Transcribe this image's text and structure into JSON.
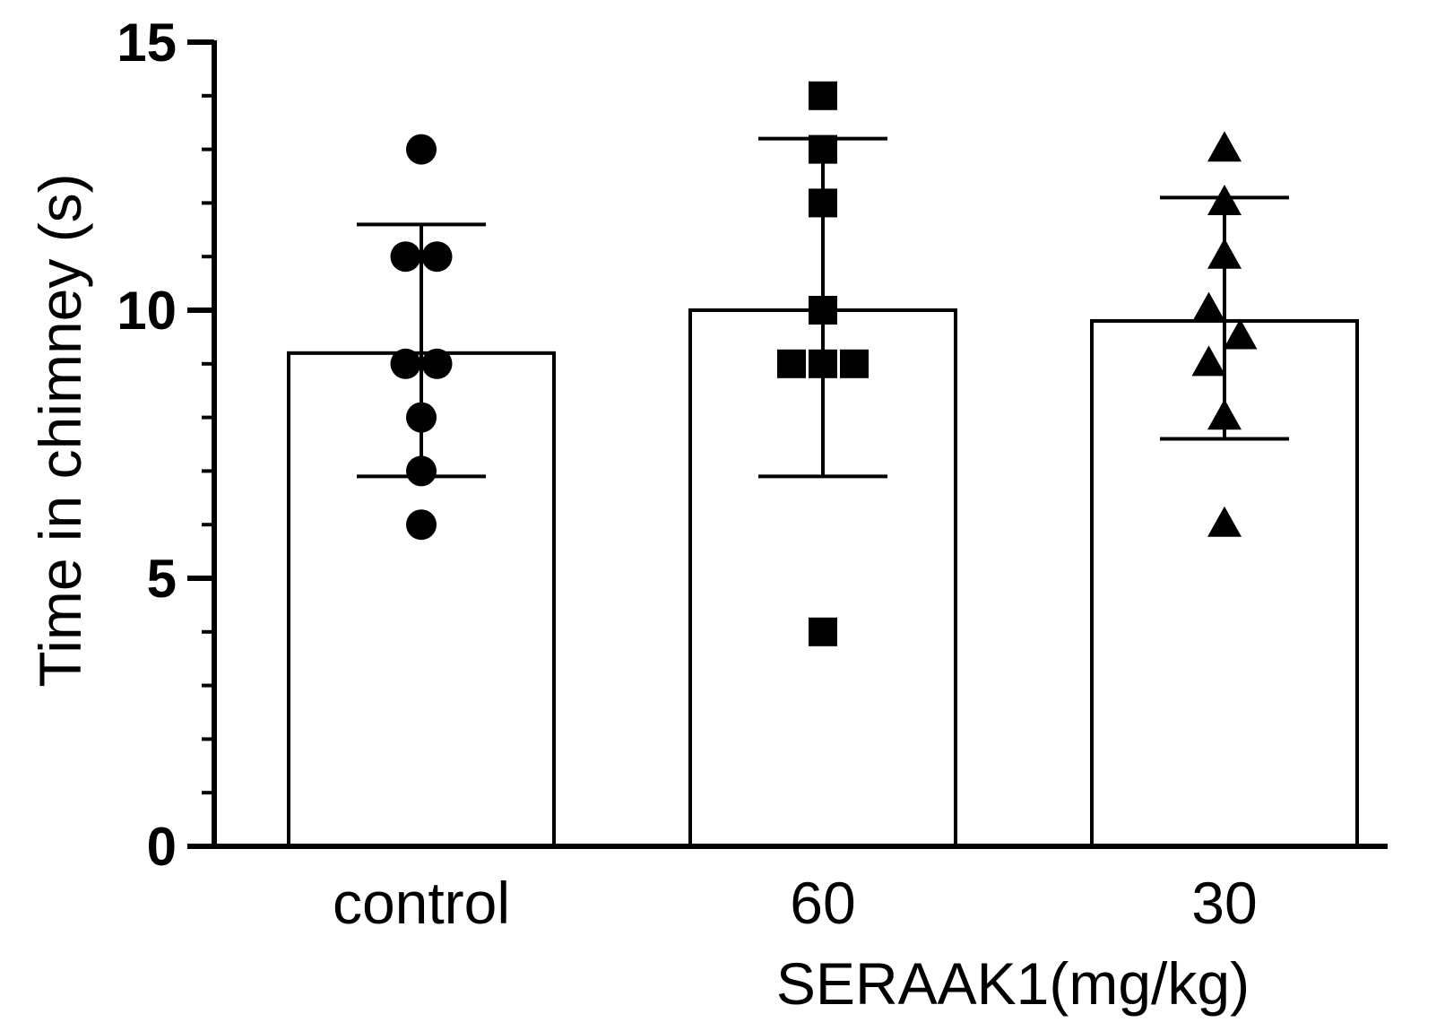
{
  "chart_data": {
    "type": "bar",
    "title": "",
    "xlabel": "SERAAK1(mg/kg)",
    "ylabel": "Time in chimney (s)",
    "ylim": [
      0,
      15
    ],
    "yticks": [
      "0",
      "5",
      "10",
      "15"
    ],
    "categories": [
      "control",
      "60",
      "30"
    ],
    "values": [
      9.2,
      10.0,
      9.8
    ],
    "error_bars": [
      {
        "low": 6.9,
        "high": 11.6
      },
      {
        "low": 6.9,
        "high": 13.2
      },
      {
        "low": 7.6,
        "high": 12.1
      }
    ],
    "points": [
      {
        "category": "control",
        "marker": "circle",
        "values": [
          13,
          11,
          11,
          9,
          9,
          8,
          7,
          6
        ],
        "offsets": [
          0,
          -0.5,
          0.5,
          -0.5,
          0.5,
          0,
          0,
          0
        ]
      },
      {
        "category": "60",
        "marker": "square",
        "values": [
          14,
          13,
          12,
          10,
          9,
          9,
          9,
          4
        ],
        "offsets": [
          0,
          0,
          0,
          0,
          -1,
          0,
          1,
          0
        ]
      },
      {
        "category": "30",
        "marker": "triangle",
        "values": [
          13,
          12,
          11,
          10,
          9.5,
          9,
          8,
          6
        ],
        "offsets": [
          0,
          0,
          0,
          -0.5,
          0.5,
          -0.5,
          0,
          0
        ]
      }
    ],
    "colors": {
      "bar_fill": "#ffffff",
      "stroke": "#000000",
      "marker": "#000000"
    }
  }
}
